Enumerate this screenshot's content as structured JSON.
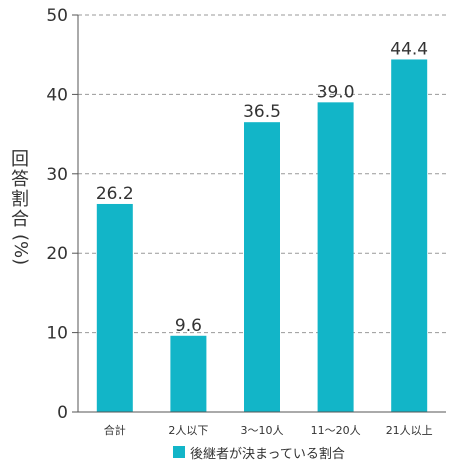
{
  "chart_data": {
    "type": "bar",
    "categories": [
      "合計",
      "2人以下",
      "3〜10人",
      "11〜20人",
      "21人以上"
    ],
    "series": [
      {
        "name": "後継者が決まっている割合",
        "values": [
          26.2,
          9.6,
          36.5,
          39.0,
          44.4
        ]
      }
    ],
    "value_labels": [
      "26.2",
      "9.6",
      "36.5",
      "39.0",
      "44.4"
    ],
    "ylabel_chars": [
      "回",
      "答",
      "割",
      "合"
    ],
    "ylabel_unit": "(%)",
    "ylim": [
      0,
      50
    ],
    "yticks": [
      0,
      10,
      20,
      30,
      40,
      50
    ],
    "grid": true,
    "legend_position": "bottom-center"
  },
  "colors": {
    "bar": "#12b5c8",
    "grid": "#999999",
    "axis": "#555555",
    "text": "#333333"
  }
}
